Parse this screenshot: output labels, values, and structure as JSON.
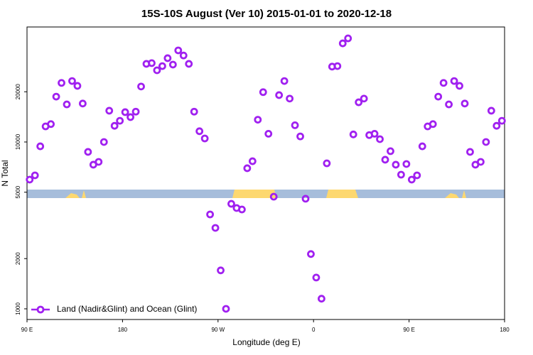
{
  "chart_data": {
    "type": "scatter",
    "title": "15S-10S August (Ver 10)   2015-01-01 to 2020-12-18",
    "x_label": "Longitude (deg E)",
    "y_label": "N Total",
    "xlim": [
      90,
      540
    ],
    "xticks": [
      {
        "value": 90,
        "label": "90 E"
      },
      180,
      {
        "value": 270,
        "label": "90 W"
      },
      {
        "value": 360,
        "label": "0"
      },
      {
        "value": 450,
        "label": "90 E"
      },
      {
        "value": 540,
        "label": "180"
      }
    ],
    "ylim": [
      863,
      48900
    ],
    "y_log": true,
    "yticks": [
      1000,
      2000,
      5000,
      10000,
      20000
    ],
    "legend": "bottom-left",
    "x": [
      92.5,
      97.5,
      102.5,
      107.5,
      112.5,
      117.5,
      122.5,
      127.5,
      132.5,
      137.5,
      142.5,
      147.5,
      152.5,
      157.5,
      162.5,
      167.5,
      172.5,
      177.5,
      182.5,
      187.5,
      192.5,
      197.5,
      202.5,
      207.5,
      212.5,
      217.5,
      222.5,
      227.5,
      232.5,
      237.5,
      242.5,
      247.5,
      252.5,
      257.5,
      262.5,
      267.5,
      272.5,
      277.5,
      282.5,
      287.5,
      292.5,
      297.5,
      302.5,
      307.5,
      312.5,
      317.5,
      322.5,
      327.5,
      332.5,
      337.5,
      342.5,
      347.5,
      352.5,
      357.5,
      362.5,
      367.5,
      372.5,
      377.5,
      382.5,
      387.5,
      392.5,
      397.5,
      402.5,
      407.5,
      412.5,
      417.5,
      422.5,
      427.5,
      432.5,
      437.5,
      442.5,
      447.5,
      452.5,
      457.5,
      462.5,
      467.5,
      472.5,
      477.5,
      482.5,
      487.5,
      492.5,
      497.5,
      502.5,
      507.5,
      512.5,
      517.5,
      522.5,
      527.5,
      532.5,
      537.5
    ],
    "series": [
      {
        "name": "Land (Nadir&Glint) and Ocean (Glint)",
        "color": "#a020f0",
        "values": [
          5950,
          6310,
          9420,
          12400,
          12800,
          18700,
          22600,
          16800,
          23200,
          21700,
          17000,
          8720,
          7310,
          7600,
          10000,
          15400,
          12500,
          13400,
          15100,
          14100,
          15200,
          21500,
          29400,
          29700,
          26900,
          28500,
          31800,
          29100,
          35400,
          33000,
          29400,
          15200,
          11600,
          10500,
          3680,
          3055,
          1700,
          1000,
          4260,
          4020,
          3940,
          6960,
          7670,
          13600,
          19900,
          11200,
          4700,
          19100,
          23200,
          18200,
          12600,
          10800,
          4570,
          2130,
          1540,
          1150,
          7450,
          28300,
          28500,
          39000,
          41800,
          11100,
          17300,
          18200,
          11000,
          11200,
          10400,
          7830,
          8810,
          7310,
          6370,
          7380,
          5950,
          6310,
          9420,
          12400,
          12800,
          18700,
          22600,
          16800,
          23200,
          21700,
          17000,
          8720,
          7310,
          7600,
          10000,
          15400,
          12500,
          13400
        ]
      }
    ]
  }
}
